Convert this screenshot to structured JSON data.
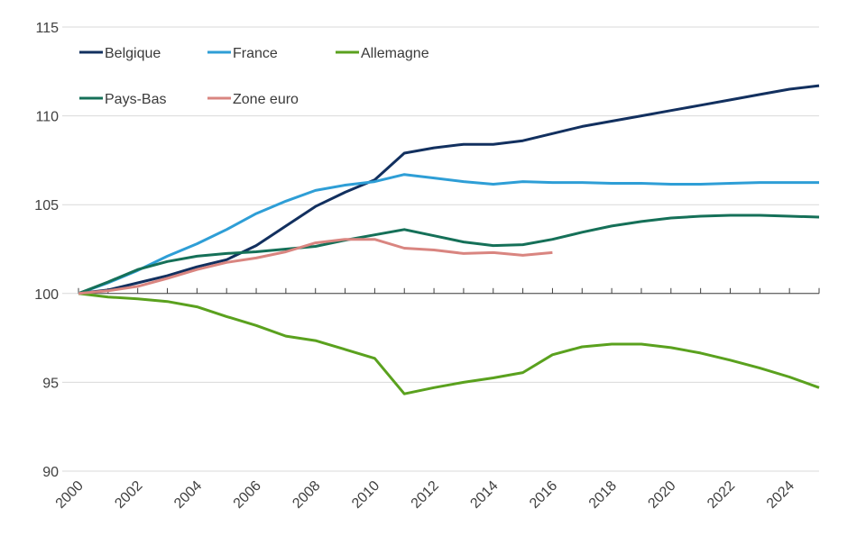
{
  "chart_data": {
    "type": "line",
    "title": "",
    "xlabel": "",
    "ylabel": "",
    "ylim": [
      90,
      115
    ],
    "yticks": [
      90,
      95,
      100,
      105,
      110,
      115
    ],
    "xlim": [
      2000,
      2025
    ],
    "xticks": [
      2000,
      2002,
      2004,
      2006,
      2008,
      2010,
      2012,
      2014,
      2016,
      2018,
      2020,
      2022,
      2024
    ],
    "grid": "horizontal",
    "legend": "top-left",
    "series": [
      {
        "name": "Belgique",
        "color": "#12305f",
        "x": [
          2000,
          2001,
          2002,
          2003,
          2004,
          2005,
          2006,
          2007,
          2008,
          2009,
          2010,
          2011,
          2012,
          2013,
          2014,
          2015,
          2016,
          2017,
          2018,
          2019,
          2020,
          2021,
          2022,
          2023,
          2024,
          2025
        ],
        "values": [
          100.0,
          100.2,
          100.6,
          101.0,
          101.5,
          101.9,
          102.7,
          103.8,
          104.9,
          105.7,
          106.4,
          107.9,
          108.2,
          108.4,
          108.4,
          108.6,
          109.0,
          109.4,
          109.7,
          110.0,
          110.3,
          110.6,
          110.9,
          111.2,
          111.5,
          111.7
        ]
      },
      {
        "name": "France",
        "color": "#2e9ed6",
        "x": [
          2000,
          2001,
          2002,
          2003,
          2004,
          2005,
          2006,
          2007,
          2008,
          2009,
          2010,
          2011,
          2012,
          2013,
          2014,
          2015,
          2016,
          2017,
          2018,
          2019,
          2020,
          2021,
          2022,
          2023,
          2024,
          2025
        ],
        "values": [
          100.0,
          100.6,
          101.3,
          102.1,
          102.8,
          103.6,
          104.5,
          105.2,
          105.8,
          106.1,
          106.3,
          106.7,
          106.5,
          106.3,
          106.15,
          106.3,
          106.25,
          106.25,
          106.2,
          106.2,
          106.15,
          106.15,
          106.2,
          106.25,
          106.25,
          106.25
        ]
      },
      {
        "name": "Allemagne",
        "color": "#5aa11e",
        "x": [
          2000,
          2001,
          2002,
          2003,
          2004,
          2005,
          2006,
          2007,
          2008,
          2009,
          2010,
          2011,
          2012,
          2013,
          2014,
          2015,
          2016,
          2017,
          2018,
          2019,
          2020,
          2021,
          2022,
          2023,
          2024,
          2025
        ],
        "values": [
          100.0,
          99.8,
          99.7,
          99.55,
          99.25,
          98.7,
          98.2,
          97.6,
          97.35,
          96.85,
          96.35,
          94.35,
          94.7,
          95.0,
          95.25,
          95.55,
          96.55,
          97.0,
          97.15,
          97.15,
          96.95,
          96.65,
          96.25,
          95.8,
          95.3,
          94.7
        ]
      },
      {
        "name": "Pays-Bas",
        "color": "#157058",
        "x": [
          2000,
          2001,
          2002,
          2003,
          2004,
          2005,
          2006,
          2007,
          2008,
          2009,
          2010,
          2011,
          2012,
          2013,
          2014,
          2015,
          2016,
          2017,
          2018,
          2019,
          2020,
          2021,
          2022,
          2023,
          2024,
          2025
        ],
        "values": [
          100.0,
          100.65,
          101.35,
          101.8,
          102.1,
          102.25,
          102.35,
          102.5,
          102.65,
          103.0,
          103.3,
          103.6,
          103.25,
          102.9,
          102.7,
          102.75,
          103.05,
          103.45,
          103.8,
          104.05,
          104.25,
          104.35,
          104.4,
          104.4,
          104.35,
          104.3
        ]
      },
      {
        "name": "Zone euro",
        "color": "#d98580",
        "x": [
          2000,
          2001,
          2002,
          2003,
          2004,
          2005,
          2006,
          2007,
          2008,
          2009,
          2010,
          2011,
          2012,
          2013,
          2014,
          2015,
          2016
        ],
        "values": [
          100.0,
          100.15,
          100.4,
          100.85,
          101.35,
          101.75,
          102.0,
          102.35,
          102.85,
          103.05,
          103.05,
          102.55,
          102.45,
          102.25,
          102.3,
          102.15,
          102.3
        ]
      }
    ]
  }
}
